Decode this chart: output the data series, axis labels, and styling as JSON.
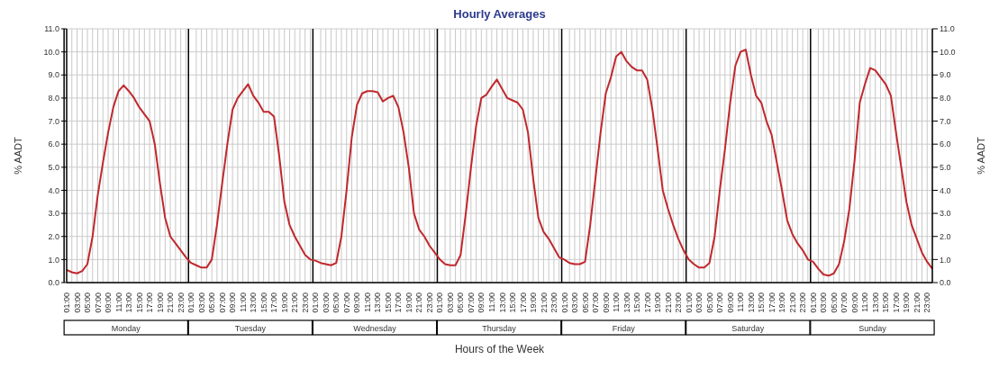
{
  "chart_data": {
    "type": "line",
    "title": "Hourly Averages",
    "xlabel": "Hours of the Week",
    "ylabel": "%  AADT",
    "y2label": "%  AADT",
    "categories": [
      "01:00",
      null,
      "03:00",
      null,
      "05:00",
      null,
      "07:00",
      null,
      "09:00",
      null,
      "11:00",
      null,
      "13:00",
      null,
      "15:00",
      null,
      "17:00",
      null,
      "19:00",
      null,
      "21:00",
      null,
      "23:00",
      null,
      "01:00",
      null,
      "03:00",
      null,
      "05:00",
      null,
      "07:00",
      null,
      "09:00",
      null,
      "11:00",
      null,
      "13:00",
      null,
      "15:00",
      null,
      "17:00",
      null,
      "19:00",
      null,
      "21:00",
      null,
      "23:00",
      null,
      "01:00",
      null,
      "03:00",
      null,
      "05:00",
      null,
      "07:00",
      null,
      "09:00",
      null,
      "11:00",
      null,
      "13:00",
      null,
      "15:00",
      null,
      "17:00",
      null,
      "19:00",
      null,
      "21:00",
      null,
      "23:00",
      null,
      "01:00",
      null,
      "03:00",
      null,
      "05:00",
      null,
      "07:00",
      null,
      "09:00",
      null,
      "11:00",
      null,
      "13:00",
      null,
      "15:00",
      null,
      "17:00",
      null,
      "19:00",
      null,
      "21:00",
      null,
      "23:00",
      null,
      "01:00",
      null,
      "03:00",
      null,
      "05:00",
      null,
      "07:00",
      null,
      "09:00",
      null,
      "11:00",
      null,
      "13:00",
      null,
      "15:00",
      null,
      "17:00",
      null,
      "19:00",
      null,
      "21:00",
      null,
      "23:00",
      null,
      "01:00",
      null,
      "03:00",
      null,
      "05:00",
      null,
      "07:00",
      null,
      "09:00",
      null,
      "11:00",
      null,
      "13:00",
      null,
      "15:00",
      null,
      "17:00",
      null,
      "19:00",
      null,
      "21:00",
      null,
      "23:00",
      null,
      "01:00",
      null,
      "03:00",
      null,
      "05:00",
      null,
      "07:00",
      null,
      "09:00",
      null,
      "11:00",
      null,
      "13:00",
      null,
      "15:00",
      null,
      "17:00",
      null,
      "19:00",
      null,
      "21:00",
      null,
      "23:00",
      null
    ],
    "series": [
      {
        "color": "#c0282d",
        "values": [
          0.55,
          0.45,
          0.4,
          0.5,
          0.8,
          2.0,
          3.8,
          5.2,
          6.5,
          7.6,
          8.3,
          8.55,
          8.3,
          8.0,
          7.6,
          7.3,
          7.0,
          6.0,
          4.3,
          2.8,
          2.0,
          1.7,
          1.4,
          1.1,
          0.85,
          0.75,
          0.65,
          0.65,
          1.0,
          2.5,
          4.3,
          6.0,
          7.5,
          8.0,
          8.3,
          8.6,
          8.1,
          7.8,
          7.4,
          7.4,
          7.2,
          5.5,
          3.5,
          2.5,
          2.0,
          1.6,
          1.2,
          1.0,
          0.95,
          0.85,
          0.8,
          0.75,
          0.85,
          2.0,
          4.0,
          6.3,
          7.7,
          8.2,
          8.3,
          8.3,
          8.25,
          7.85,
          8.0,
          8.1,
          7.6,
          6.5,
          5.0,
          3.0,
          2.3,
          2.0,
          1.6,
          1.3,
          1.0,
          0.8,
          0.75,
          0.75,
          1.2,
          3.0,
          5.0,
          6.8,
          8.0,
          8.15,
          8.5,
          8.8,
          8.4,
          8.0,
          7.9,
          7.8,
          7.5,
          6.5,
          4.5,
          2.8,
          2.2,
          1.9,
          1.5,
          1.1,
          1.0,
          0.85,
          0.8,
          0.8,
          0.9,
          2.5,
          4.5,
          6.5,
          8.2,
          8.9,
          9.8,
          10.0,
          9.6,
          9.35,
          9.2,
          9.2,
          8.8,
          7.5,
          5.8,
          4.0,
          3.2,
          2.5,
          1.9,
          1.4,
          1.0,
          0.8,
          0.65,
          0.65,
          0.85,
          2.0,
          4.0,
          5.8,
          7.8,
          9.4,
          10.0,
          10.1,
          9.0,
          8.1,
          7.8,
          7.0,
          6.4,
          5.2,
          4.0,
          2.7,
          2.1,
          1.7,
          1.4,
          1.0,
          0.9,
          0.6,
          0.35,
          0.3,
          0.4,
          0.8,
          1.8,
          3.2,
          5.3,
          7.8,
          8.6,
          9.3,
          9.2,
          8.9,
          8.6,
          8.1,
          6.5,
          5.0,
          3.5,
          2.5,
          1.9,
          1.3,
          0.9,
          0.6
        ]
      }
    ],
    "ylim": [
      0,
      11
    ],
    "yticks": [
      {
        "value": 0,
        "label": "0.0"
      },
      {
        "value": 1,
        "label": "1.0"
      },
      {
        "value": 2,
        "label": "2.0"
      },
      {
        "value": 3,
        "label": "3.0"
      },
      {
        "value": 4,
        "label": "4.0"
      },
      {
        "value": 5,
        "label": "5.0"
      },
      {
        "value": 6,
        "label": "6.0"
      },
      {
        "value": 7,
        "label": "7.0"
      },
      {
        "value": 8,
        "label": "8.0"
      },
      {
        "value": 9,
        "label": "9.0"
      },
      {
        "value": 10,
        "label": "10.0"
      },
      {
        "value": 11,
        "label": "11.0"
      }
    ],
    "y2lim": [
      0,
      11
    ],
    "y2ticks": [
      {
        "value": 0,
        "label": "0.0"
      },
      {
        "value": 1,
        "label": "1.0"
      },
      {
        "value": 2,
        "label": "2.0"
      },
      {
        "value": 3,
        "label": "3.0"
      },
      {
        "value": 4,
        "label": "4.0"
      },
      {
        "value": 5,
        "label": "5.0"
      },
      {
        "value": 6,
        "label": "6.0"
      },
      {
        "value": 7,
        "label": "7.0"
      },
      {
        "value": 8,
        "label": "8.0"
      },
      {
        "value": 9,
        "label": "9.0"
      },
      {
        "value": 10,
        "label": "10.0"
      },
      {
        "value": 11,
        "label": "11.0"
      }
    ],
    "grid": true,
    "annotations": [
      "Monday",
      "Tuesday",
      "Wednesday",
      "Thursday",
      "Friday",
      "Saturday",
      "Sunday"
    ]
  }
}
